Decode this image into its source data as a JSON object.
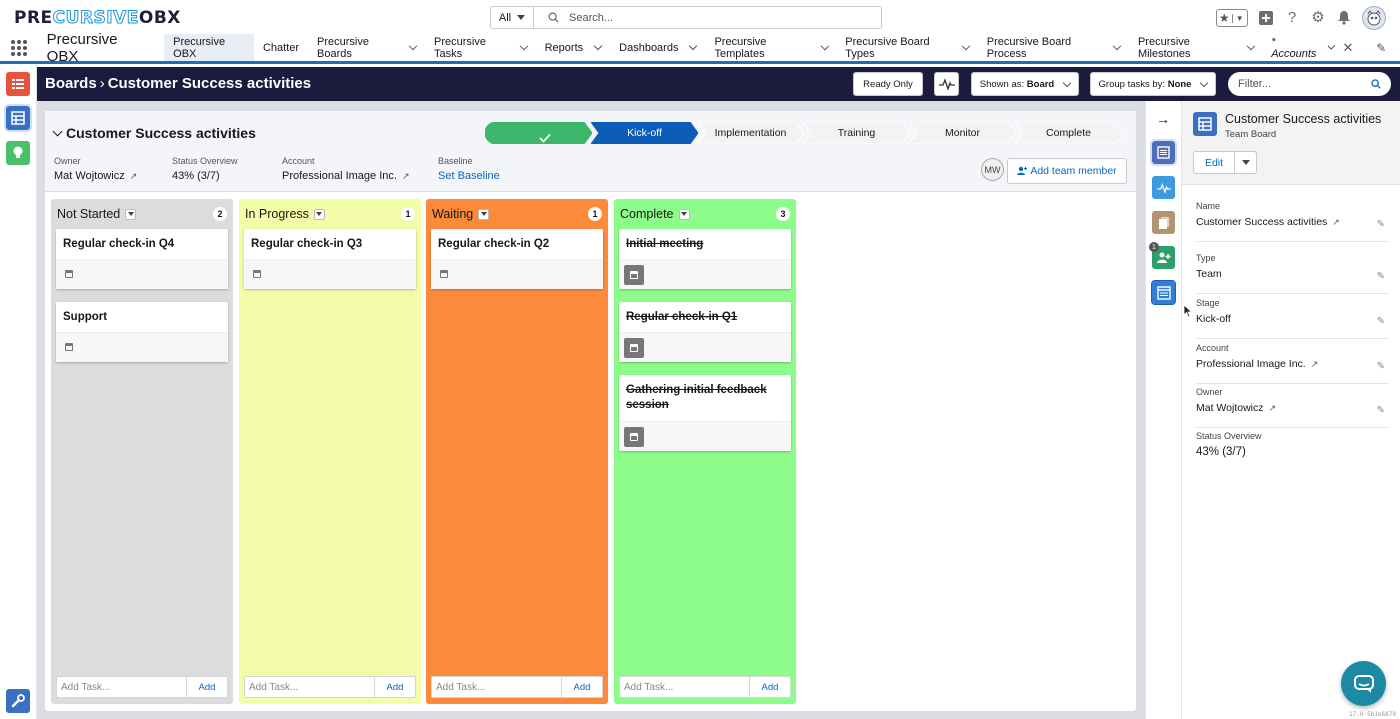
{
  "header": {
    "logo": {
      "part1": "PRE",
      "part2": "CURSIVE",
      "part3": "OBX"
    },
    "search": {
      "scope": "All",
      "placeholder": "Search..."
    }
  },
  "nav": {
    "app_name": "Precursive OBX",
    "tabs": [
      {
        "label": "Precursive OBX",
        "active": true,
        "dropdown": false
      },
      {
        "label": "Chatter",
        "dropdown": false
      },
      {
        "label": "Precursive Boards",
        "dropdown": true
      },
      {
        "label": "Precursive Tasks",
        "dropdown": true
      },
      {
        "label": "Reports",
        "dropdown": true
      },
      {
        "label": "Dashboards",
        "dropdown": true
      },
      {
        "label": "Precursive Templates",
        "dropdown": true
      },
      {
        "label": "Precursive Board Types",
        "dropdown": true
      },
      {
        "label": "Precursive Board Process",
        "dropdown": true
      },
      {
        "label": "Precursive Milestones",
        "dropdown": true
      },
      {
        "label": "* Accounts",
        "dropdown": true,
        "closable": true,
        "italic": true
      }
    ]
  },
  "board_bar": {
    "breadcrumb_root": "Boards",
    "breadcrumb_current": "Customer Success activities",
    "ready_only": "Ready Only",
    "shown_as_label": "Shown as:",
    "shown_as_value": "Board",
    "group_by_label": "Group tasks by:",
    "group_by_value": "None",
    "filter_placeholder": "Filter..."
  },
  "board": {
    "title": "Customer Success activities",
    "path": [
      {
        "label": "",
        "state": "complete"
      },
      {
        "label": "Kick-off",
        "state": "current"
      },
      {
        "label": "Implementation",
        "state": "upcoming"
      },
      {
        "label": "Training",
        "state": "upcoming"
      },
      {
        "label": "Monitor",
        "state": "upcoming"
      },
      {
        "label": "Complete",
        "state": "upcoming"
      }
    ],
    "owner_label": "Owner",
    "owner": "Mat Wojtowicz",
    "status_label": "Status Overview",
    "status": "43% (3/7)",
    "account_label": "Account",
    "account": "Professional Image Inc.",
    "baseline_label": "Baseline",
    "baseline_link": "Set Baseline",
    "member_initials": "MW",
    "add_member": "Add team member"
  },
  "columns": [
    {
      "name": "Not Started",
      "count": "2",
      "color": "#dcdcdc",
      "cards": [
        {
          "title": "Regular check-in Q4",
          "done": false
        },
        {
          "title": "Support",
          "done": false
        }
      ]
    },
    {
      "name": "In Progress",
      "count": "1",
      "color": "#f3fca8",
      "cards": [
        {
          "title": "Regular check-in Q3",
          "done": false
        }
      ]
    },
    {
      "name": "Waiting",
      "count": "1",
      "color": "#fd8a3b",
      "cards": [
        {
          "title": "Regular check-in Q2",
          "done": false
        }
      ]
    },
    {
      "name": "Complete",
      "count": "3",
      "color": "#8efc8a",
      "cards": [
        {
          "title": "Initial meeting",
          "done": true
        },
        {
          "title": "Regular check-in Q1",
          "done": true
        },
        {
          "title": "Gathering initial feedback session",
          "done": true
        }
      ]
    }
  ],
  "add_task": {
    "placeholder": "Add Task...",
    "button": "Add"
  },
  "detail": {
    "title": "Customer Success activities",
    "subtitle": "Team Board",
    "edit": "Edit",
    "fields": [
      {
        "label": "Name",
        "value": "Customer Success activities",
        "ext": true
      },
      {
        "label": "Type",
        "value": "Team",
        "ext": false
      },
      {
        "label": "Stage",
        "value": "Kick-off",
        "ext": false
      },
      {
        "label": "Account",
        "value": "Professional Image Inc.",
        "ext": true
      },
      {
        "label": "Owner",
        "value": "Mat Wojtowicz",
        "ext": true
      }
    ],
    "status_label": "Status Overview",
    "status_value": "43% (3/7)"
  },
  "right_rail_badge": "1",
  "version": "17.0-5b1e6879",
  "colors": {
    "accent": "#1c6bbf",
    "dark_bar": "#1a1b3d",
    "path_complete": "#3cb66a",
    "path_current": "#0d5cb5",
    "link": "#0b65c2"
  }
}
